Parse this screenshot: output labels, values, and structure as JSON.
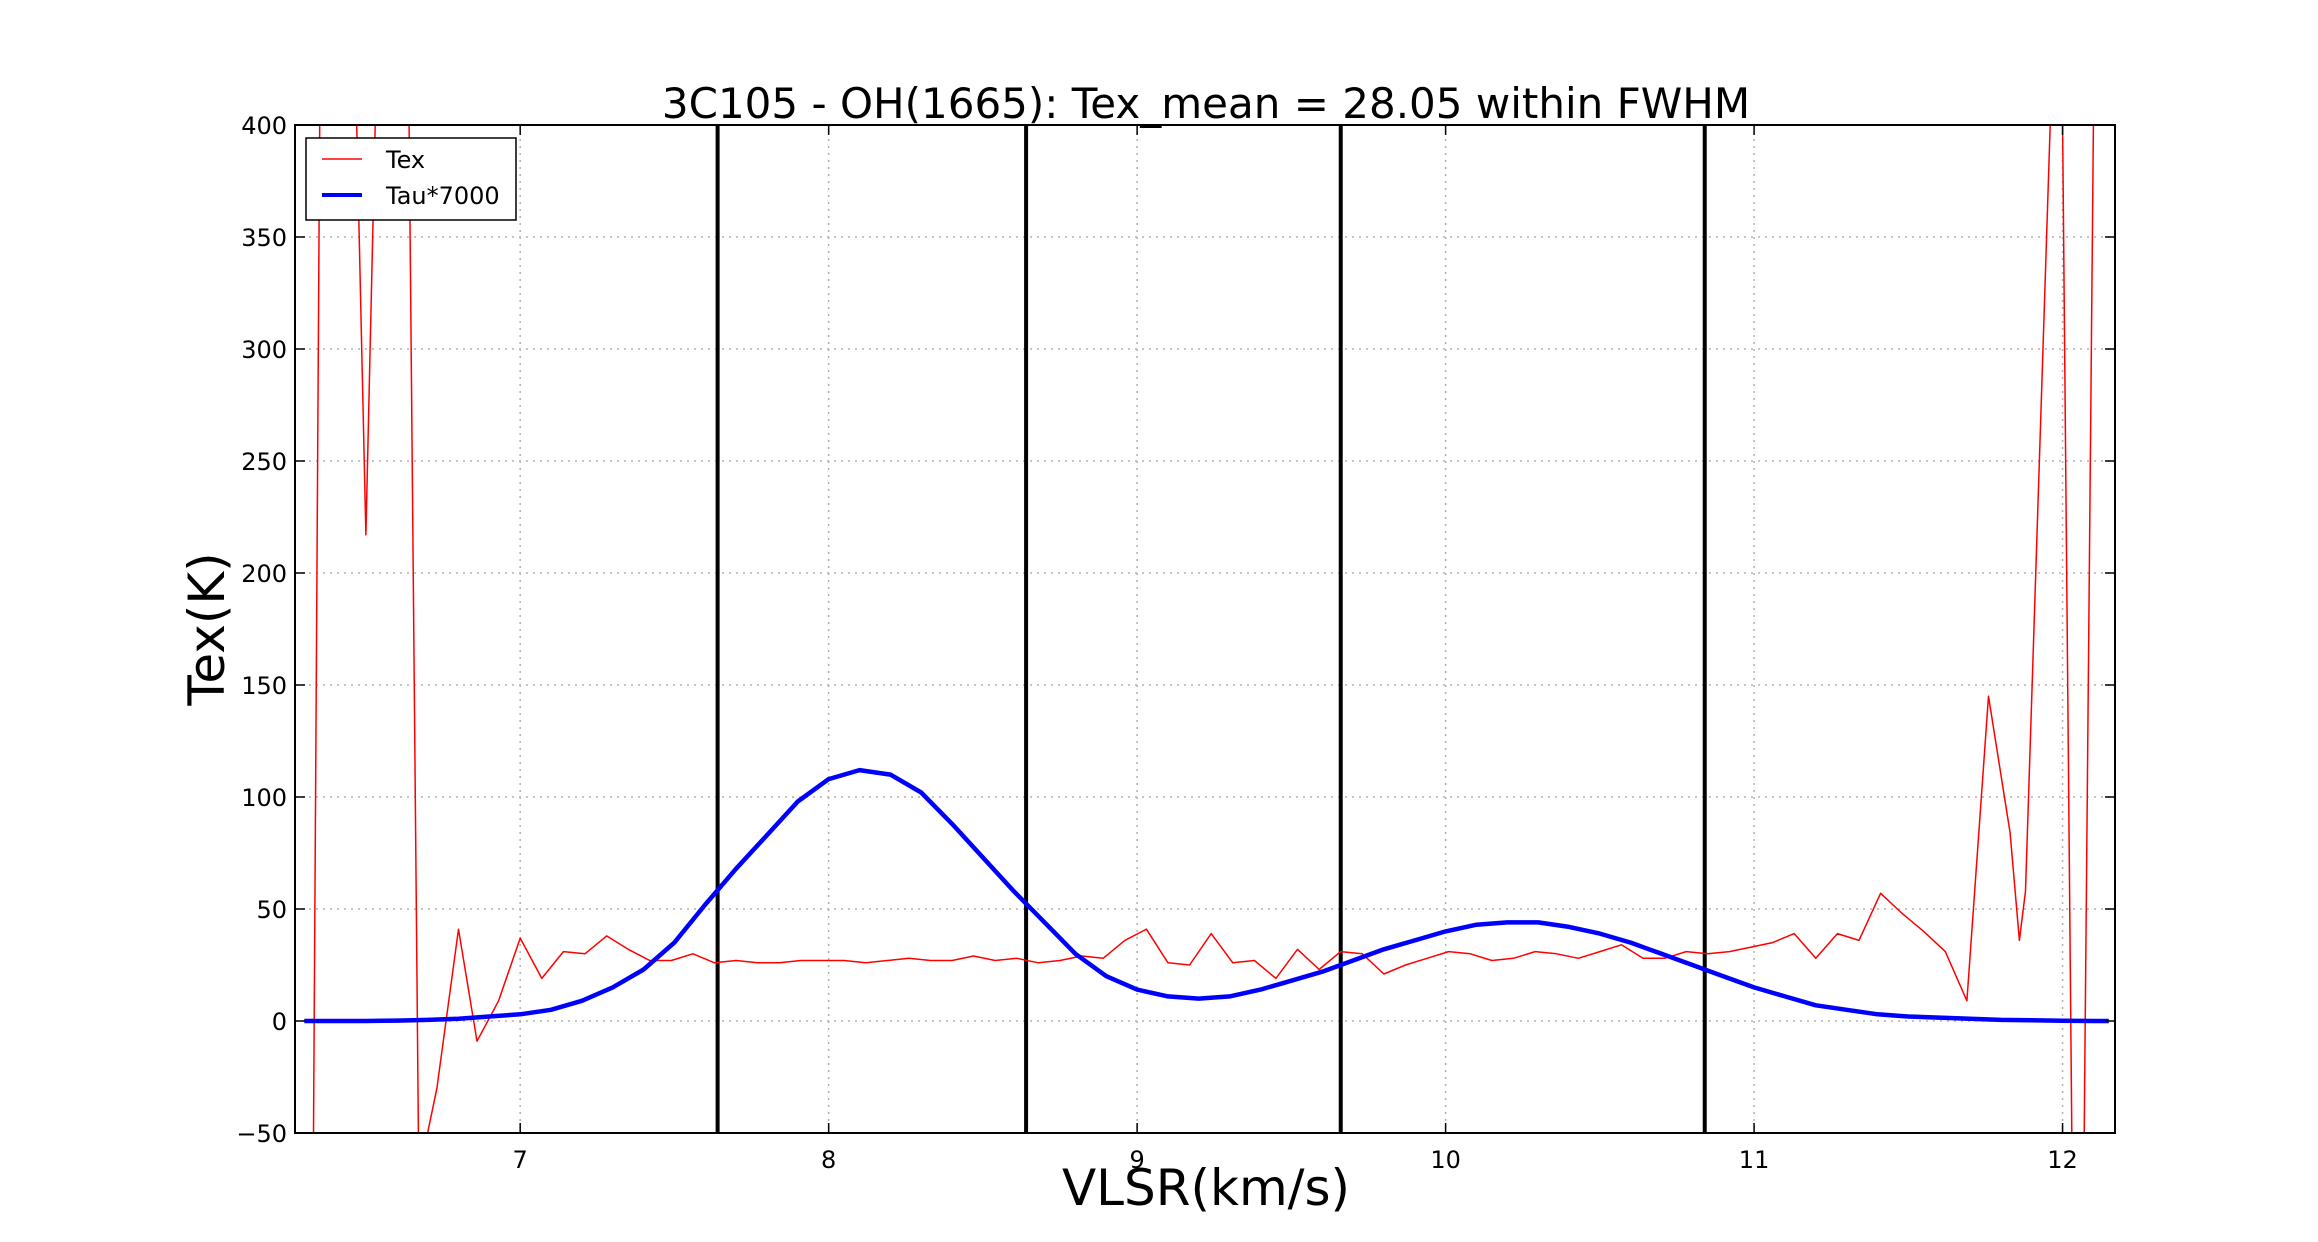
{
  "chart_data": {
    "type": "line",
    "title": "3C105 - OH(1665): Tex_mean = 28.05 within FWHM",
    "xlabel": "VLSR(km/s)",
    "ylabel": "Tex(K)",
    "xlim": [
      6.27,
      12.17
    ],
    "ylim": [
      -50,
      400
    ],
    "grid": true,
    "legend_position": "top-left",
    "x_ticks": [
      7,
      8,
      9,
      10,
      11,
      12
    ],
    "y_ticks": [
      -50,
      0,
      50,
      100,
      150,
      200,
      250,
      300,
      350,
      400
    ],
    "x_tick_labels": [
      "7",
      "8",
      "9",
      "10",
      "11",
      "12"
    ],
    "y_tick_labels": [
      "−50",
      "0",
      "50",
      "100",
      "150",
      "200",
      "250",
      "300",
      "350",
      "400"
    ],
    "vertical_lines": [
      7.64,
      8.64,
      9.66,
      10.84
    ],
    "series": [
      {
        "name": "Tex",
        "color": "#ff0000",
        "line_width": "thin",
        "x": [
          6.33,
          6.35,
          6.44,
          6.47,
          6.5,
          6.53,
          6.56,
          6.6,
          6.64,
          6.67,
          6.7,
          6.73,
          6.8,
          6.86,
          6.93,
          7.0,
          7.07,
          7.14,
          7.21,
          7.28,
          7.35,
          7.42,
          7.49,
          7.56,
          7.63,
          7.7,
          7.77,
          7.84,
          7.91,
          7.98,
          8.05,
          8.12,
          8.19,
          8.26,
          8.33,
          8.4,
          8.47,
          8.54,
          8.61,
          8.68,
          8.75,
          8.82,
          8.89,
          8.96,
          9.03,
          9.1,
          9.17,
          9.24,
          9.31,
          9.38,
          9.45,
          9.52,
          9.59,
          9.66,
          9.73,
          9.8,
          9.87,
          9.94,
          10.01,
          10.08,
          10.15,
          10.22,
          10.29,
          10.36,
          10.43,
          10.5,
          10.57,
          10.64,
          10.71,
          10.78,
          10.85,
          10.92,
          10.99,
          11.06,
          11.13,
          11.2,
          11.27,
          11.34,
          11.41,
          11.48,
          11.55,
          11.62,
          11.69,
          11.76,
          11.83,
          11.86,
          11.88,
          11.96,
          11.98,
          12.0,
          12.03,
          12.07,
          12.1
        ],
        "y": [
          -50,
          400,
          400,
          400,
          217,
          400,
          400,
          400,
          400,
          -50,
          -50,
          -30,
          41,
          -9,
          9,
          37,
          19,
          31,
          30,
          38,
          32,
          27,
          27,
          30,
          26,
          27,
          26,
          26,
          27,
          27,
          27,
          26,
          27,
          28,
          27,
          27,
          29,
          27,
          28,
          26,
          27,
          29,
          28,
          36,
          41,
          26,
          25,
          39,
          26,
          27,
          19,
          32,
          23,
          31,
          30,
          21,
          25,
          28,
          31,
          30,
          27,
          28,
          31,
          30,
          28,
          31,
          34,
          28,
          28,
          31,
          30,
          31,
          33,
          35,
          39,
          28,
          39,
          36,
          57,
          48,
          40,
          31,
          9,
          145,
          84,
          36,
          58,
          400,
          400,
          400,
          -50,
          -50,
          400
        ]
      },
      {
        "name": "Tau*7000",
        "color": "#0000ff",
        "line_width": "thick",
        "x": [
          6.3,
          6.4,
          6.5,
          6.6,
          6.7,
          6.8,
          6.9,
          7.0,
          7.1,
          7.2,
          7.3,
          7.4,
          7.5,
          7.6,
          7.7,
          7.8,
          7.9,
          8.0,
          8.1,
          8.2,
          8.3,
          8.4,
          8.5,
          8.6,
          8.7,
          8.8,
          8.9,
          9.0,
          9.1,
          9.2,
          9.3,
          9.4,
          9.5,
          9.6,
          9.7,
          9.8,
          9.9,
          10.0,
          10.1,
          10.2,
          10.3,
          10.4,
          10.5,
          10.6,
          10.7,
          10.8,
          10.9,
          11.0,
          11.1,
          11.2,
          11.3,
          11.4,
          11.5,
          11.6,
          11.7,
          11.8,
          11.9,
          12.0,
          12.1,
          12.15
        ],
        "y": [
          0,
          0,
          0,
          0.2,
          0.5,
          1,
          2,
          3,
          5,
          9,
          15,
          23,
          35,
          52,
          68,
          83,
          98,
          108,
          112,
          110,
          102,
          88,
          73,
          58,
          44,
          30,
          20,
          14,
          11,
          10,
          11,
          14,
          18,
          22,
          27,
          32,
          36,
          40,
          43,
          44,
          44,
          42,
          39,
          35,
          30,
          25,
          20,
          15,
          11,
          7,
          5,
          3,
          2,
          1.5,
          1,
          0.5,
          0.3,
          0.1,
          0,
          0
        ]
      }
    ]
  }
}
